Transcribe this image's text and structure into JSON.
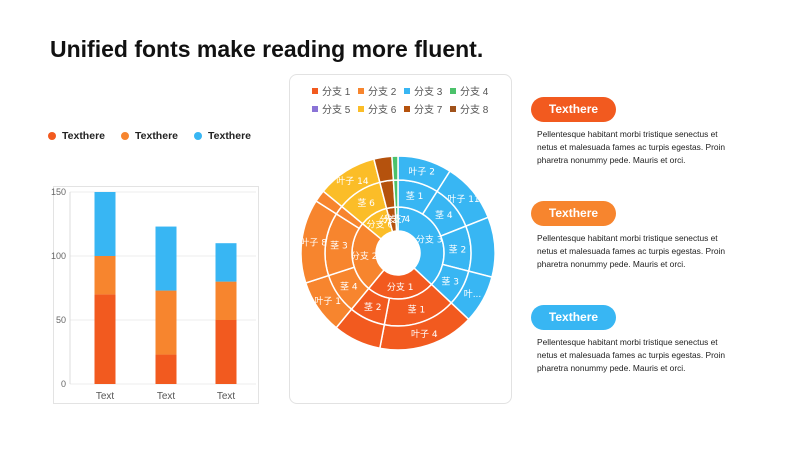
{
  "title": "Unified fonts make reading more fluent.",
  "colors": {
    "red": "#f25a1f",
    "orange": "#f7852e",
    "blue": "#38b6f3",
    "yellow": "#fbbd28",
    "brown": "#b5520d"
  },
  "legend": [
    {
      "label": "Texthere",
      "color": "#f25a1f"
    },
    {
      "label": "Texthere",
      "color": "#f7852e"
    },
    {
      "label": "Texthere",
      "color": "#38b6f3"
    }
  ],
  "chart_data": [
    {
      "type": "bar",
      "stacked": true,
      "categories": [
        "Text",
        "Text",
        "Text"
      ],
      "series": [
        {
          "values": [
            70,
            23,
            50
          ],
          "color": "#f25a1f"
        },
        {
          "values": [
            30,
            50,
            30
          ],
          "color": "#f7852e"
        },
        {
          "values": [
            50,
            50,
            30
          ],
          "color": "#38b6f3"
        }
      ],
      "ylim": [
        0,
        150
      ],
      "yticks": [
        0,
        50,
        100,
        150
      ],
      "grid": true
    },
    {
      "type": "sunburst",
      "legend": [
        {
          "label": "分支 1",
          "color": "#f25a1f"
        },
        {
          "label": "分支 2",
          "color": "#f7852e"
        },
        {
          "label": "分支 3",
          "color": "#38b6f3"
        },
        {
          "label": "分支 4",
          "color": "#4cc26b"
        },
        {
          "label": "分支 5",
          "color": "#8a73d6"
        },
        {
          "label": "分支 6",
          "color": "#fbbd28"
        },
        {
          "label": "分支 7",
          "color": "#b5520d"
        },
        {
          "label": "分支 8",
          "color": "#a0521b"
        }
      ],
      "branches": [
        {
          "label": "分支 3",
          "color": "#38b6f3",
          "value": 37,
          "stems": [
            {
              "label": "茎 1",
              "value": 9,
              "leaves": [
                {
                  "label": "叶子 2",
                  "value": 9
                }
              ]
            },
            {
              "label": "茎 4",
              "value": 10,
              "leaves": [
                {
                  "label": "叶子 11",
                  "value": 10
                }
              ]
            },
            {
              "label": "茎 2",
              "value": 10,
              "leaves": [
                {
                  "label": "",
                  "value": 10
                }
              ]
            },
            {
              "label": "茎 3",
              "value": 8,
              "leaves": [
                {
                  "label": "叶...",
                  "value": 8
                }
              ]
            }
          ]
        },
        {
          "label": "分支 1",
          "color": "#f25a1f",
          "value": 24,
          "stems": [
            {
              "label": "茎 1",
              "value": 16,
              "leaves": [
                {
                  "label": "叶子 4",
                  "value": 16
                }
              ]
            },
            {
              "label": "茎 2",
              "value": 8,
              "leaves": [
                {
                  "label": "",
                  "value": 8
                }
              ]
            }
          ]
        },
        {
          "label": "分支 2",
          "color": "#f7852e",
          "value": 25,
          "stems": [
            {
              "label": "茎 4",
              "value": 9,
              "leaves": [
                {
                  "label": "叶子 1",
                  "value": 9
                }
              ]
            },
            {
              "label": "茎 3",
              "value": 14,
              "leaves": [
                {
                  "label": "叶子 8",
                  "value": 14
                }
              ]
            },
            {
              "label": "",
              "value": 2,
              "leaves": [
                {
                  "label": "",
                  "value": 2
                }
              ]
            }
          ]
        },
        {
          "label": "分支 6",
          "color": "#fbbd28",
          "value": 10,
          "stems": [
            {
              "label": "茎 6",
              "value": 10,
              "leaves": [
                {
                  "label": "叶子 14",
                  "value": 10
                }
              ]
            }
          ]
        },
        {
          "label": "分支 7",
          "color": "#b5520d",
          "value": 3,
          "stems": [
            {
              "label": "",
              "value": 3,
              "leaves": [
                {
                  "label": "",
                  "value": 3
                }
              ]
            }
          ]
        },
        {
          "label": "分支 4",
          "color": "#4cc26b",
          "value": 1,
          "stems": [
            {
              "label": "",
              "value": 1,
              "leaves": [
                {
                  "label": "",
                  "value": 1
                }
              ]
            }
          ]
        }
      ]
    }
  ],
  "cards": [
    {
      "heading": "Texthere",
      "color": "#f25a1f",
      "body": "Pellentesque  habitant morbi tristique senectus et netus et malesuada fames ac turpis egestas. Proin pharetra nonummy  pede. Mauris et orci."
    },
    {
      "heading": "Texthere",
      "color": "#f7852e",
      "body": "Pellentesque  habitant morbi tristique senectus et netus et malesuada fames ac turpis egestas. Proin pharetra nonummy  pede. Mauris et orci."
    },
    {
      "heading": "Texthere",
      "color": "#38b6f3",
      "body": "Pellentesque  habitant morbi tristique senectus et netus et malesuada fames ac turpis egestas. Proin pharetra nonummy  pede. Mauris et orci."
    }
  ]
}
